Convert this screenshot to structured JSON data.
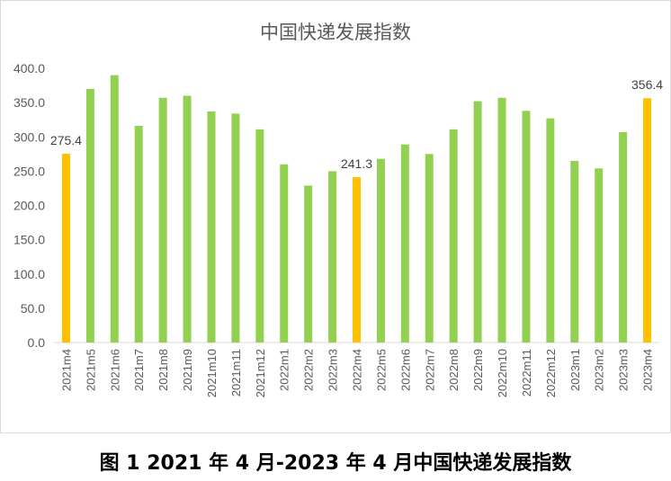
{
  "chart_data": {
    "type": "bar",
    "title": "中国快递发展指数",
    "caption": "图 1 2021 年 4 月-2023 年 4 月中国快递发展指数",
    "categories": [
      "2021m4",
      "2021m5",
      "2021m6",
      "2021m7",
      "2021m8",
      "2021m9",
      "2021m10",
      "2021m11",
      "2021m12",
      "2022m1",
      "2022m2",
      "2022m3",
      "2022m4",
      "2022m5",
      "2022m6",
      "2022m7",
      "2022m8",
      "2022m9",
      "2022m10",
      "2022m11",
      "2022m12",
      "2023m1",
      "2023m2",
      "2023m3",
      "2023m4"
    ],
    "values": [
      275.4,
      370,
      390,
      316,
      357,
      360,
      337,
      334,
      311,
      260,
      229,
      250,
      241.3,
      268,
      289,
      275,
      311,
      352,
      357,
      338,
      327,
      265,
      254,
      307,
      356.4
    ],
    "highlighted": [
      "2021m4",
      "2022m4",
      "2023m4"
    ],
    "data_labels": {
      "2021m4": "275.4",
      "2022m4": "241.3",
      "2023m4": "356.4"
    },
    "yticks": [
      "0.0",
      "50.0",
      "100.0",
      "150.0",
      "200.0",
      "250.0",
      "300.0",
      "350.0",
      "400.0"
    ],
    "ylim": [
      0,
      400
    ],
    "grid": false,
    "colors": {
      "normal": "#92d050",
      "highlight": "#ffc000"
    }
  }
}
